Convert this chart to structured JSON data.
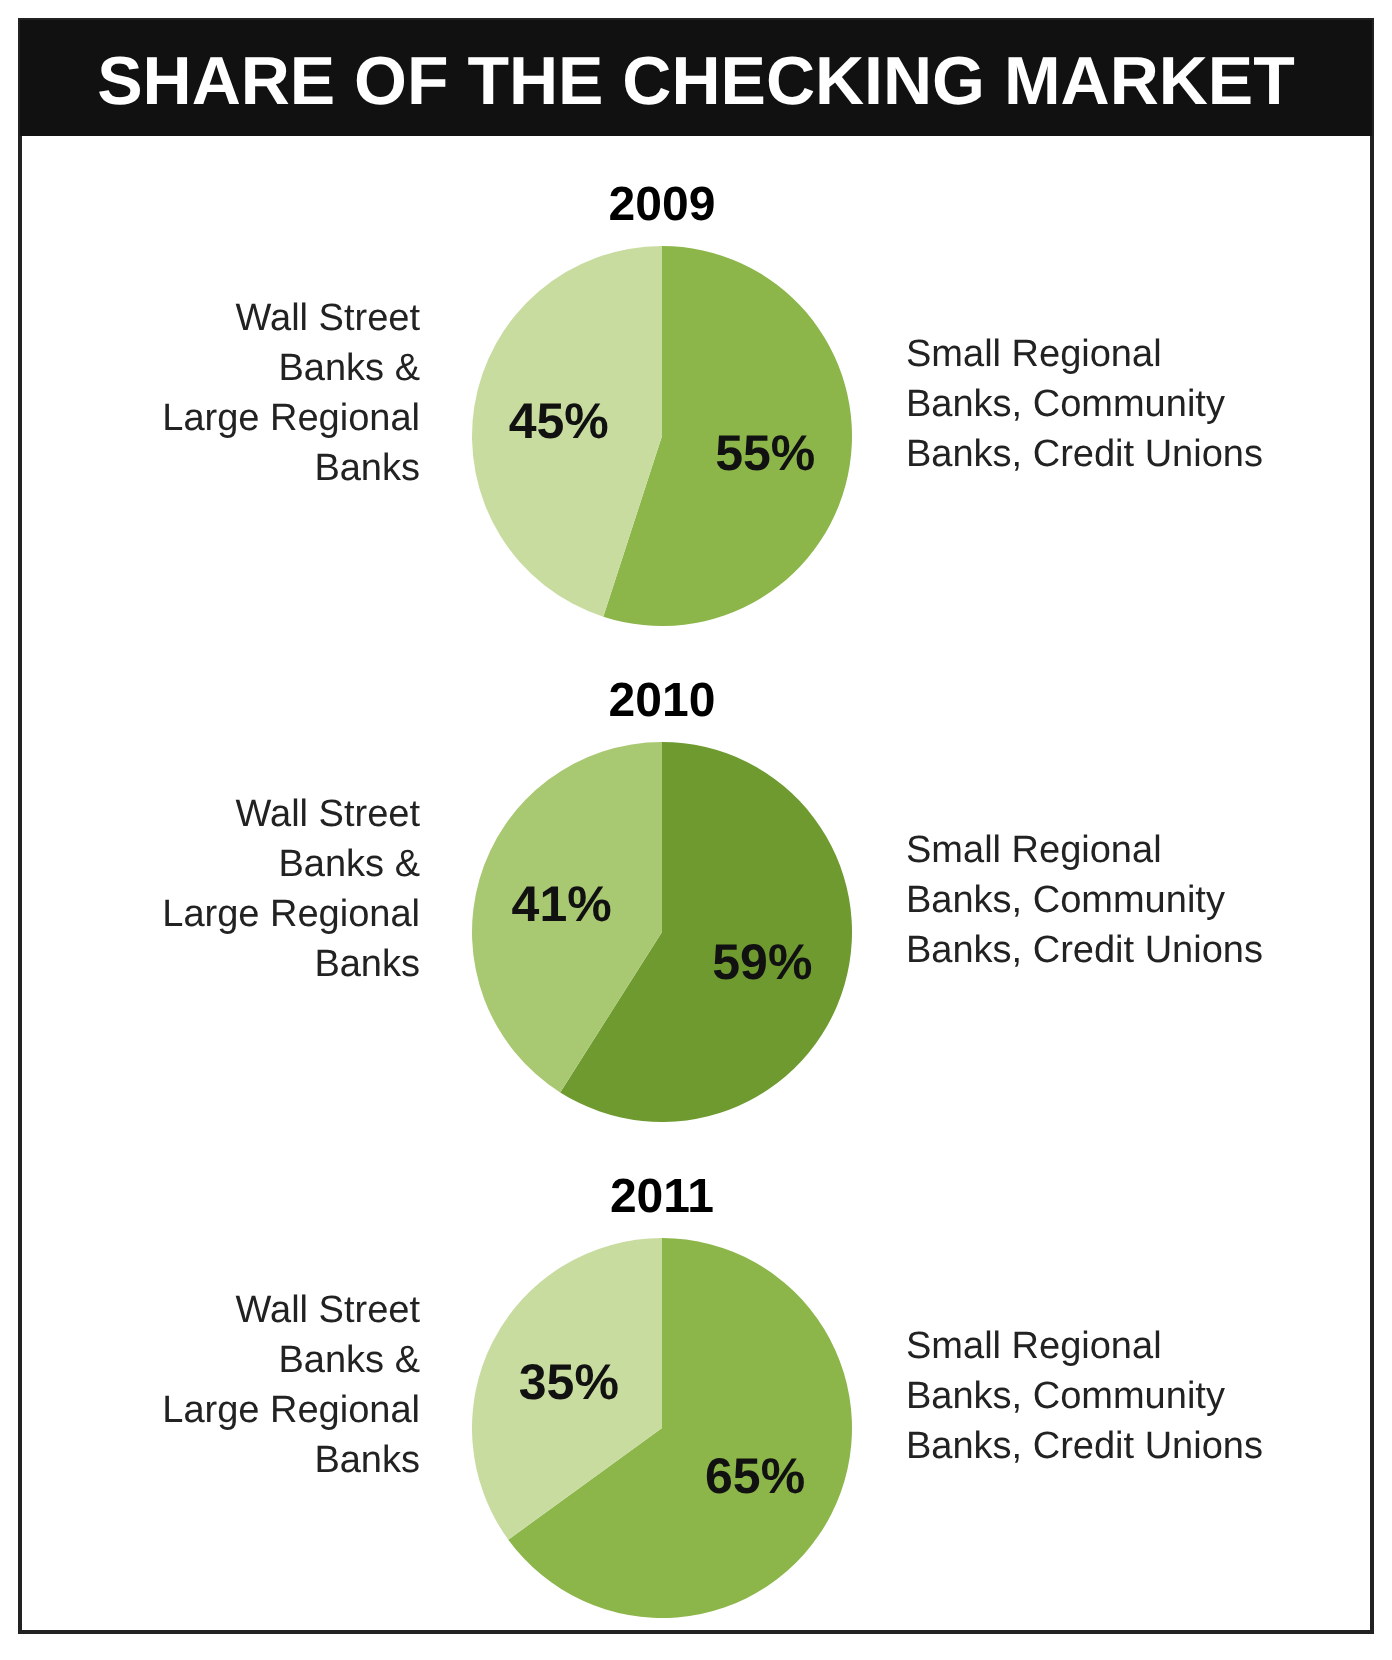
{
  "chart_data": [
    {
      "type": "pie",
      "title": "SHARE OF THE CHECKING MARKET",
      "subtitle": "2009",
      "categories": [
        "Small Regional\nBanks, Community\nBanks, Credit Unions",
        "Wall Street\nBanks &\nLarge Regional\nBanks"
      ],
      "values": [
        55,
        45
      ],
      "colors": [
        "#8cb64a",
        "#c8dca0"
      ],
      "value_labels": [
        "55%",
        "45%"
      ]
    },
    {
      "type": "pie",
      "subtitle": "2010",
      "categories": [
        "Small Regional\nBanks, Community\nBanks, Credit Unions",
        "Wall Street\nBanks &\nLarge Regional\nBanks"
      ],
      "values": [
        59,
        41
      ],
      "colors": [
        "#6e9a30",
        "#a9c872"
      ],
      "value_labels": [
        "59%",
        "41%"
      ]
    },
    {
      "type": "pie",
      "subtitle": "2011",
      "categories": [
        "Small Regional\nBanks, Community\nBanks, Credit Unions",
        "Wall Street\nBanks &\nLarge Regional\nBanks"
      ],
      "values": [
        65,
        35
      ],
      "colors": [
        "#8cb64a",
        "#c8dca0"
      ],
      "value_labels": [
        "65%",
        "35%"
      ]
    }
  ]
}
